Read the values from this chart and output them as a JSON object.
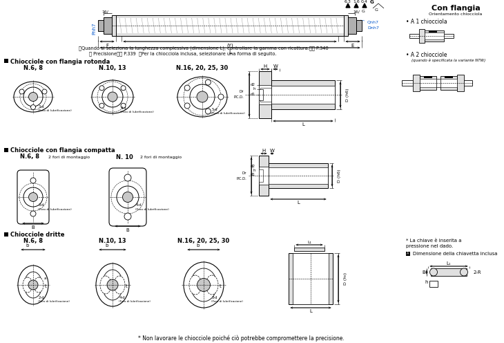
{
  "bg_color": "#ffffff",
  "gray_fill": "#c8c8c8",
  "light_gray": "#e0e0e0",
  "mid_gray": "#b0b0b0",
  "sections": {
    "note1": "ⓘQuando si seleziona la lunghezza complessiva (dimensione L), controllare la gamma con ricottura.ⓝⓝ P.340",
    "note2": "ⓘ Precisioneⓝⓝ P.339  ⓘPer la chiocciola inclusa, selezionare una forma di seguito.",
    "section1_title": "Chiocciole con flangia rotonda",
    "section1_n1": "N.6, 8",
    "section1_n2": "N.10, 13",
    "section1_n3": "N.16, 20, 25, 30",
    "section2_title": "Chiocciole con flangia compatta",
    "section2_n1": "N.6, 8",
    "section2_n1b": "2 fori di montaggio",
    "section2_n2": "N. 10",
    "section2_n2b": "2 fori di montaggio",
    "section3_title": "Chiocciole dritte",
    "section3_n1": "N.6, 8",
    "section3_n2": "N.10, 13",
    "section3_n3": "N.16, 20, 25, 30",
    "footnote": "* Non lavorare le chiocciole poiché ciò potrebbe compromettere la precisione.",
    "right_title": "Con flangia",
    "right_subtitle": "Orientamento chiocciola",
    "right_n1": "• A 1 chiocciola",
    "right_n2": "• A 2 chiocciole",
    "right_n2b": "(quando è specificata la variante NTW)",
    "bottom_right1": "* La chiave è inserita a",
    "bottom_right2": "pressione nel dado.",
    "bottom_right3": "ADimensione della chiavetta inclusa"
  }
}
